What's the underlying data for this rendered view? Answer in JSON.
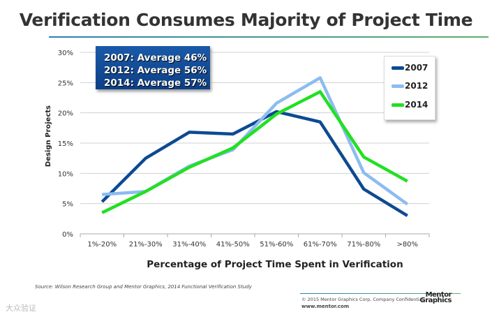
{
  "chart_data": {
    "type": "line",
    "title": "Verification Consumes Majority of Project Time",
    "xlabel": "Percentage of Project Time Spent in Verification",
    "ylabel": "Design Projects",
    "categories": [
      "1%-20%",
      "21%-30%",
      "31%-40%",
      "41%-50%",
      "51%-60%",
      "61%-70%",
      "71%-80%",
      ">80%"
    ],
    "yticks": [
      "0%",
      "5%",
      "10%",
      "15%",
      "20%",
      "25%",
      "30%"
    ],
    "ylim": [
      0,
      30
    ],
    "grid": true,
    "legend": "top-right",
    "series": [
      {
        "name": "2007",
        "color": "#0d4a91",
        "values": [
          5.3,
          12.5,
          16.8,
          16.5,
          20.2,
          18.5,
          7.4,
          3.0
        ]
      },
      {
        "name": "2012",
        "color": "#8cbcf0",
        "values": [
          6.5,
          7.0,
          11.2,
          13.9,
          21.6,
          25.8,
          10.1,
          4.9
        ]
      },
      {
        "name": "2014",
        "color": "#22e022",
        "values": [
          3.5,
          7.0,
          11.0,
          14.2,
          19.8,
          23.5,
          12.7,
          8.7
        ]
      }
    ],
    "annotation": [
      "2007: Average 46%",
      "2012: Average 56%",
      "2014: Average 57%"
    ]
  },
  "footer": {
    "source": "Source:  Wilson Research Group and Mentor Graphics, 2014 Functional Verification Study",
    "copyright": "© 2015 Mentor Graphics Corp.   Company Confidential",
    "url": "www.mentor.com",
    "logo": "Mentor Graphics",
    "watermark": "大众验证"
  }
}
